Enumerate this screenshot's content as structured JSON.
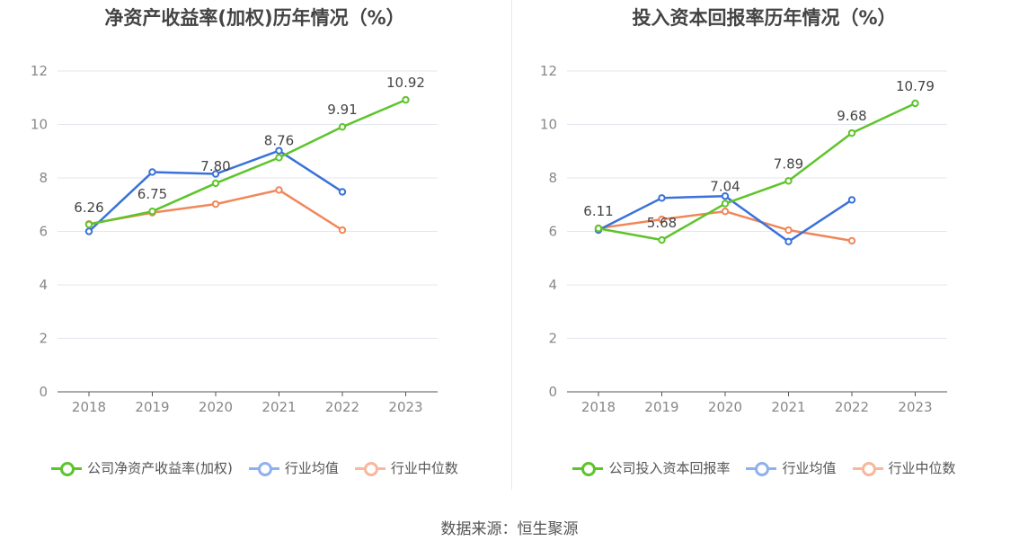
{
  "source_text": "数据来源：恒生聚源",
  "chart_data": [
    {
      "type": "line",
      "title": "净资产收益率(加权)历年情况（%）",
      "x": [
        "2018",
        "2019",
        "2020",
        "2021",
        "2022",
        "2023"
      ],
      "ylim": [
        0,
        12
      ],
      "yticks": [
        0,
        2,
        4,
        6,
        8,
        10,
        12
      ],
      "grid": true,
      "legend_position": "bottom",
      "series": [
        {
          "name": "公司净资产收益率(加权)",
          "color": "#5ec42b",
          "values": [
            6.26,
            6.75,
            7.8,
            8.76,
            9.91,
            10.92
          ],
          "labels": [
            "6.26",
            "6.75",
            "7.80",
            "8.76",
            "9.91",
            "10.92"
          ]
        },
        {
          "name": "行业均值",
          "color": "#3a72d9",
          "legend_color": "#8fb0ee",
          "values": [
            6.0,
            8.22,
            8.15,
            9.02,
            7.48,
            null
          ]
        },
        {
          "name": "行业中位数",
          "color": "#f0875a",
          "legend_color": "#f7b79a",
          "values": [
            6.28,
            6.7,
            7.02,
            7.55,
            6.05,
            null
          ]
        }
      ]
    },
    {
      "type": "line",
      "title": "投入资本回报率历年情况（%）",
      "x": [
        "2018",
        "2019",
        "2020",
        "2021",
        "2022",
        "2023"
      ],
      "ylim": [
        0,
        12
      ],
      "yticks": [
        0,
        2,
        4,
        6,
        8,
        10,
        12
      ],
      "grid": true,
      "legend_position": "bottom",
      "series": [
        {
          "name": "公司投入资本回报率",
          "color": "#5ec42b",
          "values": [
            6.11,
            5.68,
            7.04,
            7.89,
            9.68,
            10.79
          ],
          "labels": [
            "6.11",
            "5.68",
            "7.04",
            "7.89",
            "9.68",
            "10.79"
          ]
        },
        {
          "name": "行业均值",
          "color": "#3a72d9",
          "legend_color": "#8fb0ee",
          "values": [
            6.05,
            7.25,
            7.32,
            5.62,
            7.18,
            null
          ]
        },
        {
          "name": "行业中位数",
          "color": "#f0875a",
          "legend_color": "#f7b79a",
          "values": [
            6.12,
            6.45,
            6.75,
            6.05,
            5.65,
            null
          ]
        }
      ]
    }
  ]
}
